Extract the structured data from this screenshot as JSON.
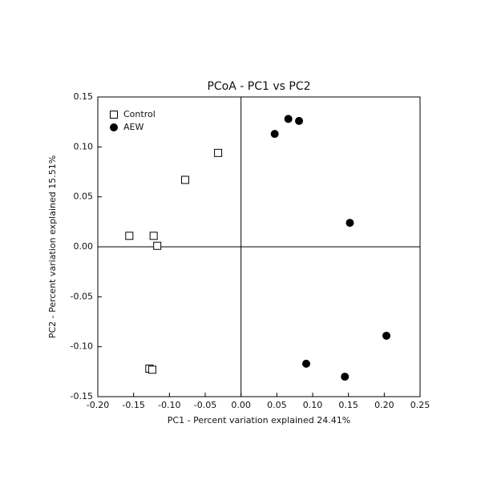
{
  "chart_data": {
    "type": "scatter",
    "title": "PCoA - PC1 vs PC2",
    "xlabel": "PC1 - Percent variation explained 24.41%",
    "ylabel": "PC2 - Percent variation explained 15.51%",
    "xlim": [
      -0.2,
      0.25
    ],
    "ylim": [
      -0.15,
      0.15
    ],
    "xticks": [
      {
        "value": -0.2,
        "label": "-0.20"
      },
      -0.15,
      {
        "value": -0.1,
        "label": "-0.10"
      },
      -0.05,
      {
        "value": 0,
        "label": "0.00"
      },
      0.05,
      {
        "value": 0.1,
        "label": "0.10"
      },
      0.15,
      {
        "value": 0.2,
        "label": "0.20"
      },
      0.25
    ],
    "yticks": [
      -0.15,
      {
        "value": -0.1,
        "label": "-0.10"
      },
      -0.05,
      {
        "value": 0,
        "label": "0.00"
      },
      0.05,
      {
        "value": 0.1,
        "label": "0.10"
      },
      0.15
    ],
    "zero_lines": true,
    "legend": "upper-left",
    "series": [
      {
        "name": "Control",
        "color": "#000000",
        "marker": "square",
        "filled": false,
        "x": [
          -0.032,
          -0.078,
          -0.156,
          -0.122,
          -0.117,
          -0.128,
          -0.124
        ],
        "values": [
          0.094,
          0.067,
          0.011,
          0.011,
          0.001,
          -0.122,
          -0.123
        ]
      },
      {
        "name": "AEW",
        "color": "#000000",
        "marker": "circle",
        "filled": true,
        "x": [
          0.047,
          0.066,
          0.081,
          0.152,
          0.203,
          0.091,
          0.145
        ],
        "values": [
          0.113,
          0.128,
          0.126,
          0.024,
          -0.089,
          -0.117,
          -0.13
        ]
      }
    ]
  }
}
